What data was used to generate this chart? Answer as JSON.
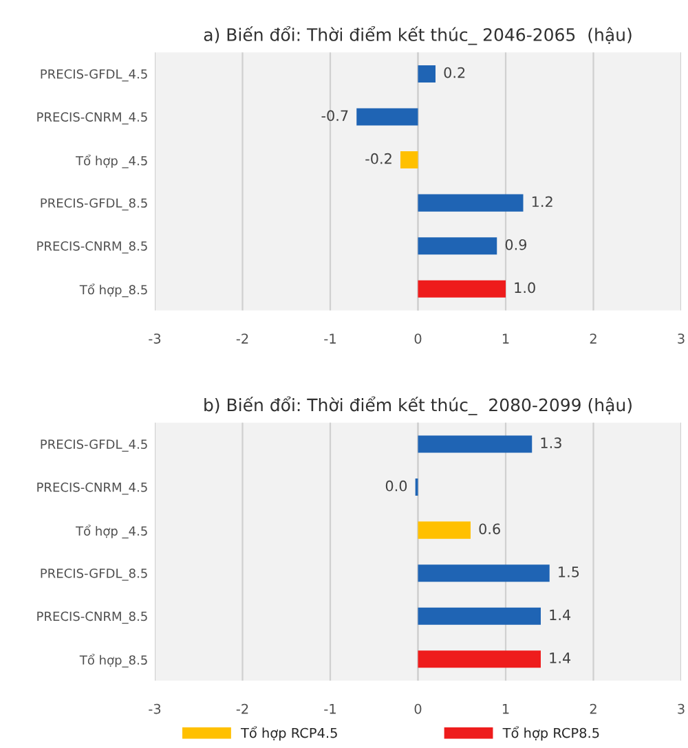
{
  "chart_data": [
    {
      "type": "bar",
      "orientation": "horizontal",
      "title": "a) Biến đổi: Thời điểm kết thúc_ 2046-2065  (hậu)",
      "categories": [
        "PRECIS-GFDL_4.5",
        "PRECIS-CNRM_4.5",
        "Tổ hợp _4.5",
        "PRECIS-GFDL_8.5",
        "PRECIS-CNRM_8.5",
        "Tổ hợp_8.5"
      ],
      "series": [
        {
          "color": "#1f64b4",
          "values": [
            0.2,
            -0.7,
            null,
            1.2,
            0.9,
            null
          ],
          "value_labels": [
            "0.2",
            "-0.7",
            null,
            "1.2",
            "0.9",
            null
          ]
        },
        {
          "color": "#ffc000",
          "values": [
            null,
            null,
            -0.2,
            null,
            null,
            null
          ],
          "value_labels": [
            null,
            null,
            "-0.2",
            null,
            null,
            null
          ]
        },
        {
          "color": "#ee1c1c",
          "values": [
            null,
            null,
            null,
            null,
            null,
            1.0
          ],
          "value_labels": [
            null,
            null,
            null,
            null,
            null,
            "1.0"
          ]
        }
      ],
      "xlim": [
        -3,
        3
      ],
      "xticks": [
        -3,
        -2,
        -1,
        0,
        1,
        2,
        3
      ],
      "grid": "x",
      "legend": false
    },
    {
      "type": "bar",
      "orientation": "horizontal",
      "title": "b) Biến đổi: Thời điểm kết thúc_  2080-2099 (hậu)",
      "categories": [
        "PRECIS-GFDL_4.5",
        "PRECIS-CNRM_4.5",
        "Tổ hợp _4.5",
        "PRECIS-GFDL_8.5",
        "PRECIS-CNRM_8.5",
        "Tổ hợp_8.5"
      ],
      "series": [
        {
          "color": "#1f64b4",
          "values": [
            1.3,
            -0.03,
            null,
            1.5,
            1.4,
            null
          ],
          "value_labels": [
            "1.3",
            "0.0",
            null,
            "1.5",
            "1.4",
            null
          ]
        },
        {
          "name": "Tổ hợp RCP4.5",
          "color": "#ffc000",
          "values": [
            null,
            null,
            0.6,
            null,
            null,
            null
          ],
          "value_labels": [
            null,
            null,
            "0.6",
            null,
            null,
            null
          ]
        },
        {
          "name": "Tổ hợp RCP8.5",
          "color": "#ee1c1c",
          "values": [
            null,
            null,
            null,
            null,
            null,
            1.4
          ],
          "value_labels": [
            null,
            null,
            null,
            null,
            null,
            "1.4"
          ]
        }
      ],
      "xlim": [
        -3,
        3
      ],
      "xticks": [
        -3,
        -2,
        -1,
        0,
        1,
        2,
        3
      ],
      "grid": "x",
      "legend": "bottom"
    }
  ]
}
